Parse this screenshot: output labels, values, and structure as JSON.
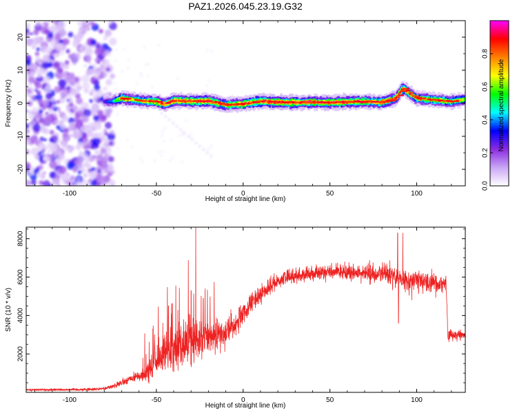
{
  "chart_data": [
    {
      "type": "heatmap",
      "title": "PAZ1.2026.045.23.19.G32",
      "xlabel": "Height of straight line (km)",
      "ylabel": "Frequency (Hz)",
      "xlim": [
        -125,
        128
      ],
      "ylim": [
        -25,
        25
      ],
      "x_ticks": [
        -100,
        -50,
        0,
        50,
        100
      ],
      "y_ticks": [
        -20,
        -10,
        0,
        10,
        20
      ],
      "grid": false,
      "colorbar": {
        "label": "Normalized spectral amplitude",
        "range": [
          0,
          1
        ],
        "ticks": [
          "0.0",
          "0.2",
          "0.4",
          "0.6",
          "0.8"
        ],
        "colors": [
          "#ffffff",
          "#c9a6f5",
          "#8a2be2",
          "#0000ff",
          "#00ffff",
          "#00ff00",
          "#ffff00",
          "#ff8000",
          "#ff0000",
          "#ff00ff"
        ]
      },
      "ridge": {
        "description_points_x": [
          -80,
          -75,
          -70,
          -60,
          -50,
          -45,
          -40,
          -30,
          -20,
          -10,
          0,
          10,
          20,
          30,
          40,
          50,
          60,
          70,
          80,
          88,
          92,
          96,
          100,
          110,
          120,
          128
        ],
        "frequency_hz": [
          0.5,
          0.5,
          1.5,
          0.8,
          0.5,
          -0.3,
          0.8,
          0.6,
          0.7,
          -0.5,
          -0.2,
          0.6,
          0.3,
          0.2,
          0.3,
          0.2,
          0.4,
          0.5,
          0.3,
          1.5,
          4.5,
          3.0,
          1.5,
          1.0,
          0.5,
          1.2
        ],
        "peak_amplitude": [
          0.3,
          0.4,
          0.85,
          0.8,
          0.9,
          0.85,
          0.9,
          0.9,
          0.9,
          0.85,
          0.9,
          0.95,
          0.95,
          0.95,
          0.95,
          0.95,
          0.9,
          0.9,
          0.9,
          0.85,
          0.9,
          0.85,
          0.8,
          0.8,
          0.75,
          0.7
        ]
      },
      "noise_region_x": [
        -125,
        -75
      ]
    },
    {
      "type": "line",
      "xlabel": "Height of straight line (km)",
      "ylabel": "SNR (10 * v/v)",
      "xlim": [
        -125,
        128
      ],
      "ylim": [
        0,
        8600
      ],
      "x_ticks": [
        -100,
        -50,
        0,
        50,
        100
      ],
      "y_ticks": [
        2000,
        4000,
        6000,
        8000
      ],
      "color": "#ee2222",
      "grid": false,
      "envelope": {
        "x": [
          -125,
          -90,
          -80,
          -72,
          -65,
          -58,
          -52,
          -45,
          -38,
          -30,
          -22,
          -15,
          -8,
          0,
          5,
          10,
          15,
          20,
          25,
          35,
          45,
          55,
          65,
          75,
          85,
          90,
          95,
          100,
          110,
          117,
          118,
          120,
          128
        ],
        "y": [
          130,
          150,
          200,
          400,
          700,
          900,
          1400,
          2000,
          2400,
          2700,
          2900,
          3000,
          3300,
          4000,
          4600,
          5100,
          5500,
          5800,
          6000,
          6150,
          6250,
          6300,
          6200,
          6150,
          6100,
          5900,
          5800,
          5850,
          5700,
          5650,
          2900,
          3000,
          3000
        ]
      },
      "noise_amplitude": {
        "x": [
          -125,
          -80,
          -60,
          -50,
          -30,
          -20,
          0,
          20,
          60,
          80,
          100,
          117,
          118,
          128
        ],
        "y": [
          60,
          80,
          300,
          900,
          1400,
          900,
          700,
          400,
          400,
          600,
          550,
          500,
          300,
          300
        ]
      },
      "spikes": [
        {
          "x": -43,
          "y": 4500
        },
        {
          "x": -30,
          "y": 5300
        },
        {
          "x": -23,
          "y": 4900
        },
        {
          "x": 89,
          "y": 8300
        },
        {
          "x": 89.5,
          "y": 3600
        },
        {
          "x": 92,
          "y": 8300
        }
      ]
    }
  ]
}
